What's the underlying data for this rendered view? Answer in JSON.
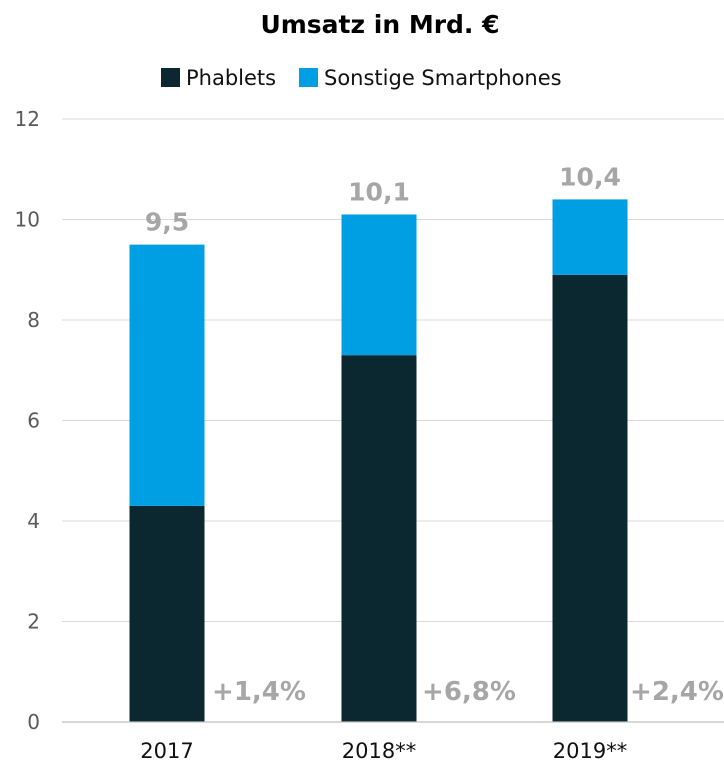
{
  "chart_data": {
    "type": "bar",
    "stacked": true,
    "title": "Umsatz in Mrd. €",
    "categories": [
      "2017",
      "2018**",
      "2019**"
    ],
    "series": [
      {
        "name": "Phablets",
        "color": "#0b2730",
        "values": [
          4.3,
          7.3,
          8.9
        ]
      },
      {
        "name": "Sonstige Smartphones",
        "color": "#009fe3",
        "values": [
          5.2,
          2.8,
          1.5
        ]
      }
    ],
    "totals": [
      "9,5",
      "10,1",
      "10,4"
    ],
    "growth": [
      "+1,4%",
      "+6,8%",
      "+2,4%"
    ],
    "yticks": [
      "0",
      "2",
      "4",
      "6",
      "8",
      "10",
      "12"
    ],
    "ylim": [
      0,
      12
    ],
    "grid": true,
    "legend_position": "top-center"
  }
}
